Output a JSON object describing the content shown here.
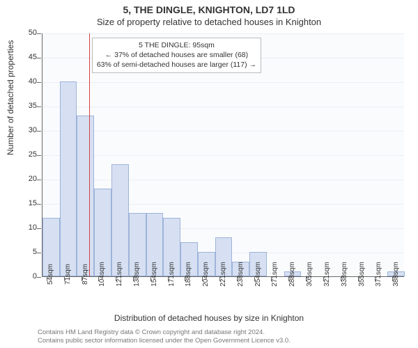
{
  "title": "5, THE DINGLE, KNIGHTON, LD7 1LD",
  "subtitle": "Size of property relative to detached houses in Knighton",
  "chart": {
    "type": "histogram",
    "plot_background": "#fafbfd",
    "grid_color": "#eceef3",
    "axis_color": "#666666",
    "bar_fill_color": "#d6e0f2",
    "bar_border_color": "#9db3d9",
    "bar_width_ratio": 1.0,
    "ylim": [
      0,
      50
    ],
    "ytick_step": 5,
    "ylabel": "Number of detached properties",
    "xlabel": "Distribution of detached houses by size in Knighton",
    "x_tick_start": 54,
    "x_tick_step": 16.7,
    "x_tick_count": 21,
    "x_tick_unit": "sqm",
    "bars": [
      {
        "x0": 50,
        "x1": 66.7,
        "count": 12
      },
      {
        "x0": 66.7,
        "x1": 83.3,
        "count": 40
      },
      {
        "x0": 83.3,
        "x1": 100,
        "count": 33
      },
      {
        "x0": 100,
        "x1": 116.7,
        "count": 18
      },
      {
        "x0": 116.7,
        "x1": 133.3,
        "count": 23
      },
      {
        "x0": 133.3,
        "x1": 150,
        "count": 13
      },
      {
        "x0": 150,
        "x1": 166.7,
        "count": 13
      },
      {
        "x0": 166.7,
        "x1": 183.3,
        "count": 12
      },
      {
        "x0": 183.3,
        "x1": 200,
        "count": 7
      },
      {
        "x0": 200,
        "x1": 216.7,
        "count": 5
      },
      {
        "x0": 216.7,
        "x1": 233.3,
        "count": 8
      },
      {
        "x0": 233.3,
        "x1": 250,
        "count": 3
      },
      {
        "x0": 250,
        "x1": 266.7,
        "count": 5
      },
      {
        "x0": 266.7,
        "x1": 283.3,
        "count": 0
      },
      {
        "x0": 283.3,
        "x1": 300,
        "count": 1
      },
      {
        "x0": 300,
        "x1": 316.7,
        "count": 0
      },
      {
        "x0": 316.7,
        "x1": 333.3,
        "count": 0
      },
      {
        "x0": 333.3,
        "x1": 350,
        "count": 0
      },
      {
        "x0": 350,
        "x1": 366.7,
        "count": 0
      },
      {
        "x0": 366.7,
        "x1": 383.3,
        "count": 0
      },
      {
        "x0": 383.3,
        "x1": 400,
        "count": 1
      }
    ],
    "x_domain": [
      50,
      400
    ],
    "reference_line": {
      "x": 95,
      "color": "#d44141"
    },
    "annotation": {
      "line1": "5 THE DINGLE: 95sqm",
      "line2": "← 37% of detached houses are smaller (68)",
      "line3": "63% of semi-detached houses are larger (117) →",
      "border_color": "#bcbcbc",
      "background": "#ffffff",
      "fontsize": 10.5
    }
  },
  "footer": {
    "line1": "Contains HM Land Registry data © Crown copyright and database right 2024.",
    "line2": "Contains public sector information licensed under the Open Government Licence v3.0.",
    "color": "#777777"
  }
}
